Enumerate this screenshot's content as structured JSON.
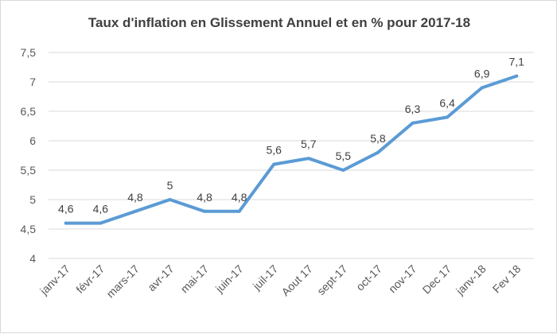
{
  "chart_data": {
    "type": "line",
    "title": "Taux d'inflation en Glissement Annuel et en % pour 2017-18",
    "xlabel": "",
    "ylabel": "",
    "categories": [
      "janv-17",
      "févr-17",
      "mars-17",
      "avr-17",
      "mai-17",
      "juin-17",
      "juil-17",
      "Aout 17",
      "sept-17",
      "oct-17",
      "nov-17",
      "Dec 17",
      "janv-18",
      "Fev 18"
    ],
    "values": [
      4.6,
      4.6,
      4.8,
      5.0,
      4.8,
      4.8,
      5.6,
      5.7,
      5.5,
      5.8,
      6.3,
      6.4,
      6.9,
      7.1
    ],
    "value_labels": [
      "4,6",
      "4,6",
      "4,8",
      "5",
      "4,8",
      "4,8",
      "5,6",
      "5,7",
      "5,5",
      "5,8",
      "6,3",
      "6,4",
      "6,9",
      "7,1"
    ],
    "yticks": [
      "4",
      "4,5",
      "5",
      "5,5",
      "6",
      "6,5",
      "7",
      "7,5"
    ],
    "ylim": [
      4,
      7.5
    ],
    "grid": "horizontal",
    "legend": "none",
    "colors": {
      "line": "#5b9bd5",
      "grid": "#d9d9d9",
      "text": "#595959"
    }
  }
}
